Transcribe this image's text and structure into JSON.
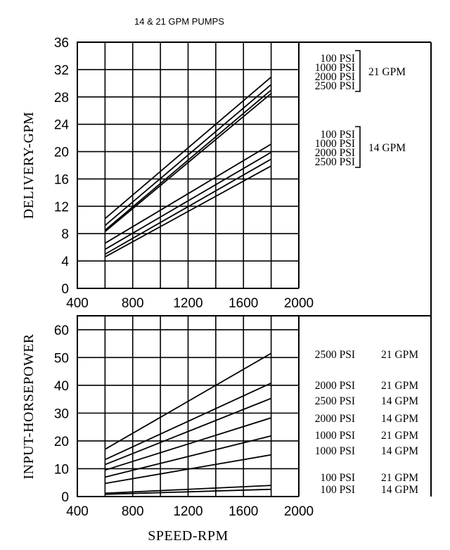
{
  "title": "14 & 21 GPM PUMPS",
  "chart_data": [
    {
      "type": "line",
      "ylabel": "DELIVERY-GPM",
      "xlabel": "",
      "xlim": [
        400,
        2000
      ],
      "ylim": [
        0,
        36
      ],
      "xticks": [
        "400",
        "800",
        "1200",
        "1600",
        "2000"
      ],
      "yticks": [
        "0",
        "4",
        "8",
        "12",
        "16",
        "20",
        "24",
        "28",
        "32",
        "36"
      ],
      "grid": true,
      "series": [
        {
          "name": "100 PSI 21 GPM",
          "x": [
            600,
            1800
          ],
          "y": [
            10.2,
            30.9
          ]
        },
        {
          "name": "1000 PSI 21 GPM",
          "x": [
            600,
            1800
          ],
          "y": [
            9.2,
            29.8
          ]
        },
        {
          "name": "2000 PSI 21 GPM",
          "x": [
            600,
            1800
          ],
          "y": [
            8.5,
            29.0
          ]
        },
        {
          "name": "2500 PSI 21 GPM",
          "x": [
            600,
            1800
          ],
          "y": [
            8.3,
            28.5
          ]
        },
        {
          "name": "100 PSI 14 GPM",
          "x": [
            600,
            1800
          ],
          "y": [
            6.6,
            21.1
          ]
        },
        {
          "name": "1000 PSI 14 GPM",
          "x": [
            600,
            1800
          ],
          "y": [
            5.7,
            19.9
          ]
        },
        {
          "name": "2000 PSI 14 GPM",
          "x": [
            600,
            1800
          ],
          "y": [
            5.0,
            18.9
          ]
        },
        {
          "name": "2500 PSI 14 GPM",
          "x": [
            600,
            1800
          ],
          "y": [
            4.6,
            17.9
          ]
        }
      ],
      "legend_groups": [
        {
          "items": [
            "100 PSI",
            "1000 PSI",
            "2000 PSI",
            "2500 PSI"
          ],
          "group_label": "21 GPM"
        },
        {
          "items": [
            "100 PSI",
            "1000 PSI",
            "2000 PSI",
            "2500 PSI"
          ],
          "group_label": "14 GPM"
        }
      ]
    },
    {
      "type": "line",
      "ylabel": "INPUT-HORSEPOWER",
      "xlabel": "SPEED-RPM",
      "xlim": [
        400,
        2000
      ],
      "ylim": [
        0,
        65
      ],
      "xticks": [
        "400",
        "800",
        "1200",
        "1600",
        "2000"
      ],
      "yticks": [
        "0",
        "10",
        "20",
        "30",
        "40",
        "50",
        "60"
      ],
      "grid": true,
      "series": [
        {
          "name": "2500 PSI 21 GPM",
          "x": [
            600,
            1800
          ],
          "y": [
            17.0,
            51.5
          ]
        },
        {
          "name": "2000 PSI 21 GPM",
          "x": [
            600,
            1800
          ],
          "y": [
            13.3,
            40.8
          ]
        },
        {
          "name": "2500 PSI 14 GPM",
          "x": [
            600,
            1800
          ],
          "y": [
            11.5,
            35.3
          ]
        },
        {
          "name": "2000 PSI 14 GPM",
          "x": [
            600,
            1800
          ],
          "y": [
            9.5,
            28.3
          ]
        },
        {
          "name": "1000 PSI 21 GPM",
          "x": [
            600,
            1800
          ],
          "y": [
            7.0,
            21.8
          ]
        },
        {
          "name": "1000 PSI 14 GPM",
          "x": [
            600,
            1800
          ],
          "y": [
            4.7,
            15.0
          ]
        },
        {
          "name": "100 PSI 21 GPM",
          "x": [
            600,
            1800
          ],
          "y": [
            1.2,
            4.0
          ]
        },
        {
          "name": "100 PSI 14 GPM",
          "x": [
            600,
            1800
          ],
          "y": [
            0.8,
            2.6
          ]
        }
      ],
      "legend": [
        {
          "psi": "2500 PSI",
          "gpm": "21 GPM"
        },
        {
          "psi": "2000 PSI",
          "gpm": "21 GPM"
        },
        {
          "psi": "2500 PSI",
          "gpm": "14 GPM"
        },
        {
          "psi": "2000 PSI",
          "gpm": "14 GPM"
        },
        {
          "psi": "1000 PSI",
          "gpm": "21 GPM"
        },
        {
          "psi": "1000 PSI",
          "gpm": "14 GPM"
        },
        {
          "psi": "100 PSI",
          "gpm": "21 GPM"
        },
        {
          "psi": "100 PSI",
          "gpm": "14 GPM"
        }
      ]
    }
  ]
}
